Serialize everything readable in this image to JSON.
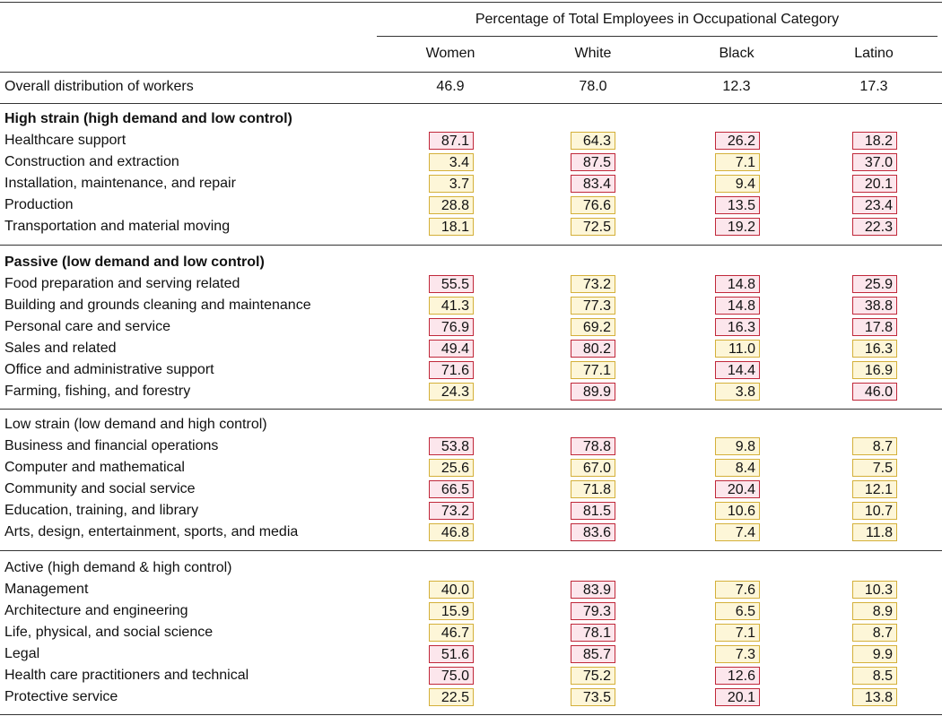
{
  "header": {
    "spanner": "Percentage of Total Employees in Occupational Category",
    "columns": [
      "Women",
      "White",
      "Black",
      "Latino"
    ]
  },
  "overall": {
    "label": "Overall distribution of workers",
    "values": [
      "46.9",
      "78.0",
      "12.3",
      "17.3"
    ]
  },
  "groups": [
    {
      "title": "High strain (high demand and low control)",
      "rows": [
        {
          "label": "Healthcare support",
          "values": [
            "87.1",
            "64.3",
            "26.2",
            "18.2"
          ]
        },
        {
          "label": "Construction and extraction",
          "values": [
            "3.4",
            "87.5",
            "7.1",
            "37.0"
          ]
        },
        {
          "label": "Installation, maintenance, and repair",
          "values": [
            "3.7",
            "83.4",
            "9.4",
            "20.1"
          ]
        },
        {
          "label": "Production",
          "values": [
            "28.8",
            "76.6",
            "13.5",
            "23.4"
          ]
        },
        {
          "label": "Transportation and material moving",
          "values": [
            "18.1",
            "72.5",
            "19.2",
            "22.3"
          ]
        }
      ]
    },
    {
      "title": "Passive (low demand and low control)",
      "rows": [
        {
          "label": "Food preparation and serving related",
          "values": [
            "55.5",
            "73.2",
            "14.8",
            "25.9"
          ]
        },
        {
          "label": "Building and grounds cleaning and maintenance",
          "values": [
            "41.3",
            "77.3",
            "14.8",
            "38.8"
          ]
        },
        {
          "label": "Personal care and service",
          "values": [
            "76.9",
            "69.2",
            "16.3",
            "17.8"
          ]
        },
        {
          "label": "Sales and related",
          "values": [
            "49.4",
            "80.2",
            "11.0",
            "16.3"
          ]
        },
        {
          "label": "Office and administrative support",
          "values": [
            "71.6",
            "77.1",
            "14.4",
            "16.9"
          ]
        },
        {
          "label": "Farming, fishing, and forestry",
          "values": [
            "24.3",
            "89.9",
            "3.8",
            "46.0"
          ]
        }
      ]
    },
    {
      "title": "Low strain (low demand and high control)",
      "rows": [
        {
          "label": "Business and financial operations",
          "values": [
            "53.8",
            "78.8",
            "9.8",
            "8.7"
          ]
        },
        {
          "label": "Computer and mathematical",
          "values": [
            "25.6",
            "67.0",
            "8.4",
            "7.5"
          ]
        },
        {
          "label": "Community and social service",
          "values": [
            "66.5",
            "71.8",
            "20.4",
            "12.1"
          ]
        },
        {
          "label": "Education, training, and library",
          "values": [
            "73.2",
            "81.5",
            "10.6",
            "10.7"
          ]
        },
        {
          "label": "Arts, design, entertainment, sports, and media",
          "values": [
            "46.8",
            "83.6",
            "7.4",
            "11.8"
          ]
        }
      ]
    },
    {
      "title": "Active (high demand & high control)",
      "rows": [
        {
          "label": "Management",
          "values": [
            "40.0",
            "83.9",
            "7.6",
            "10.3"
          ]
        },
        {
          "label": "Architecture and engineering",
          "values": [
            "15.9",
            "79.3",
            "6.5",
            "8.9"
          ]
        },
        {
          "label": "Life, physical, and social science",
          "values": [
            "46.7",
            "78.1",
            "7.1",
            "8.7"
          ]
        },
        {
          "label": "Legal",
          "values": [
            "51.6",
            "85.7",
            "7.3",
            "9.9"
          ]
        },
        {
          "label": "Health care practitioners and technical",
          "values": [
            "75.0",
            "75.2",
            "12.6",
            "8.5"
          ]
        },
        {
          "label": "Protective service",
          "values": [
            "22.5",
            "73.5",
            "20.1",
            "13.8"
          ]
        }
      ]
    }
  ]
}
